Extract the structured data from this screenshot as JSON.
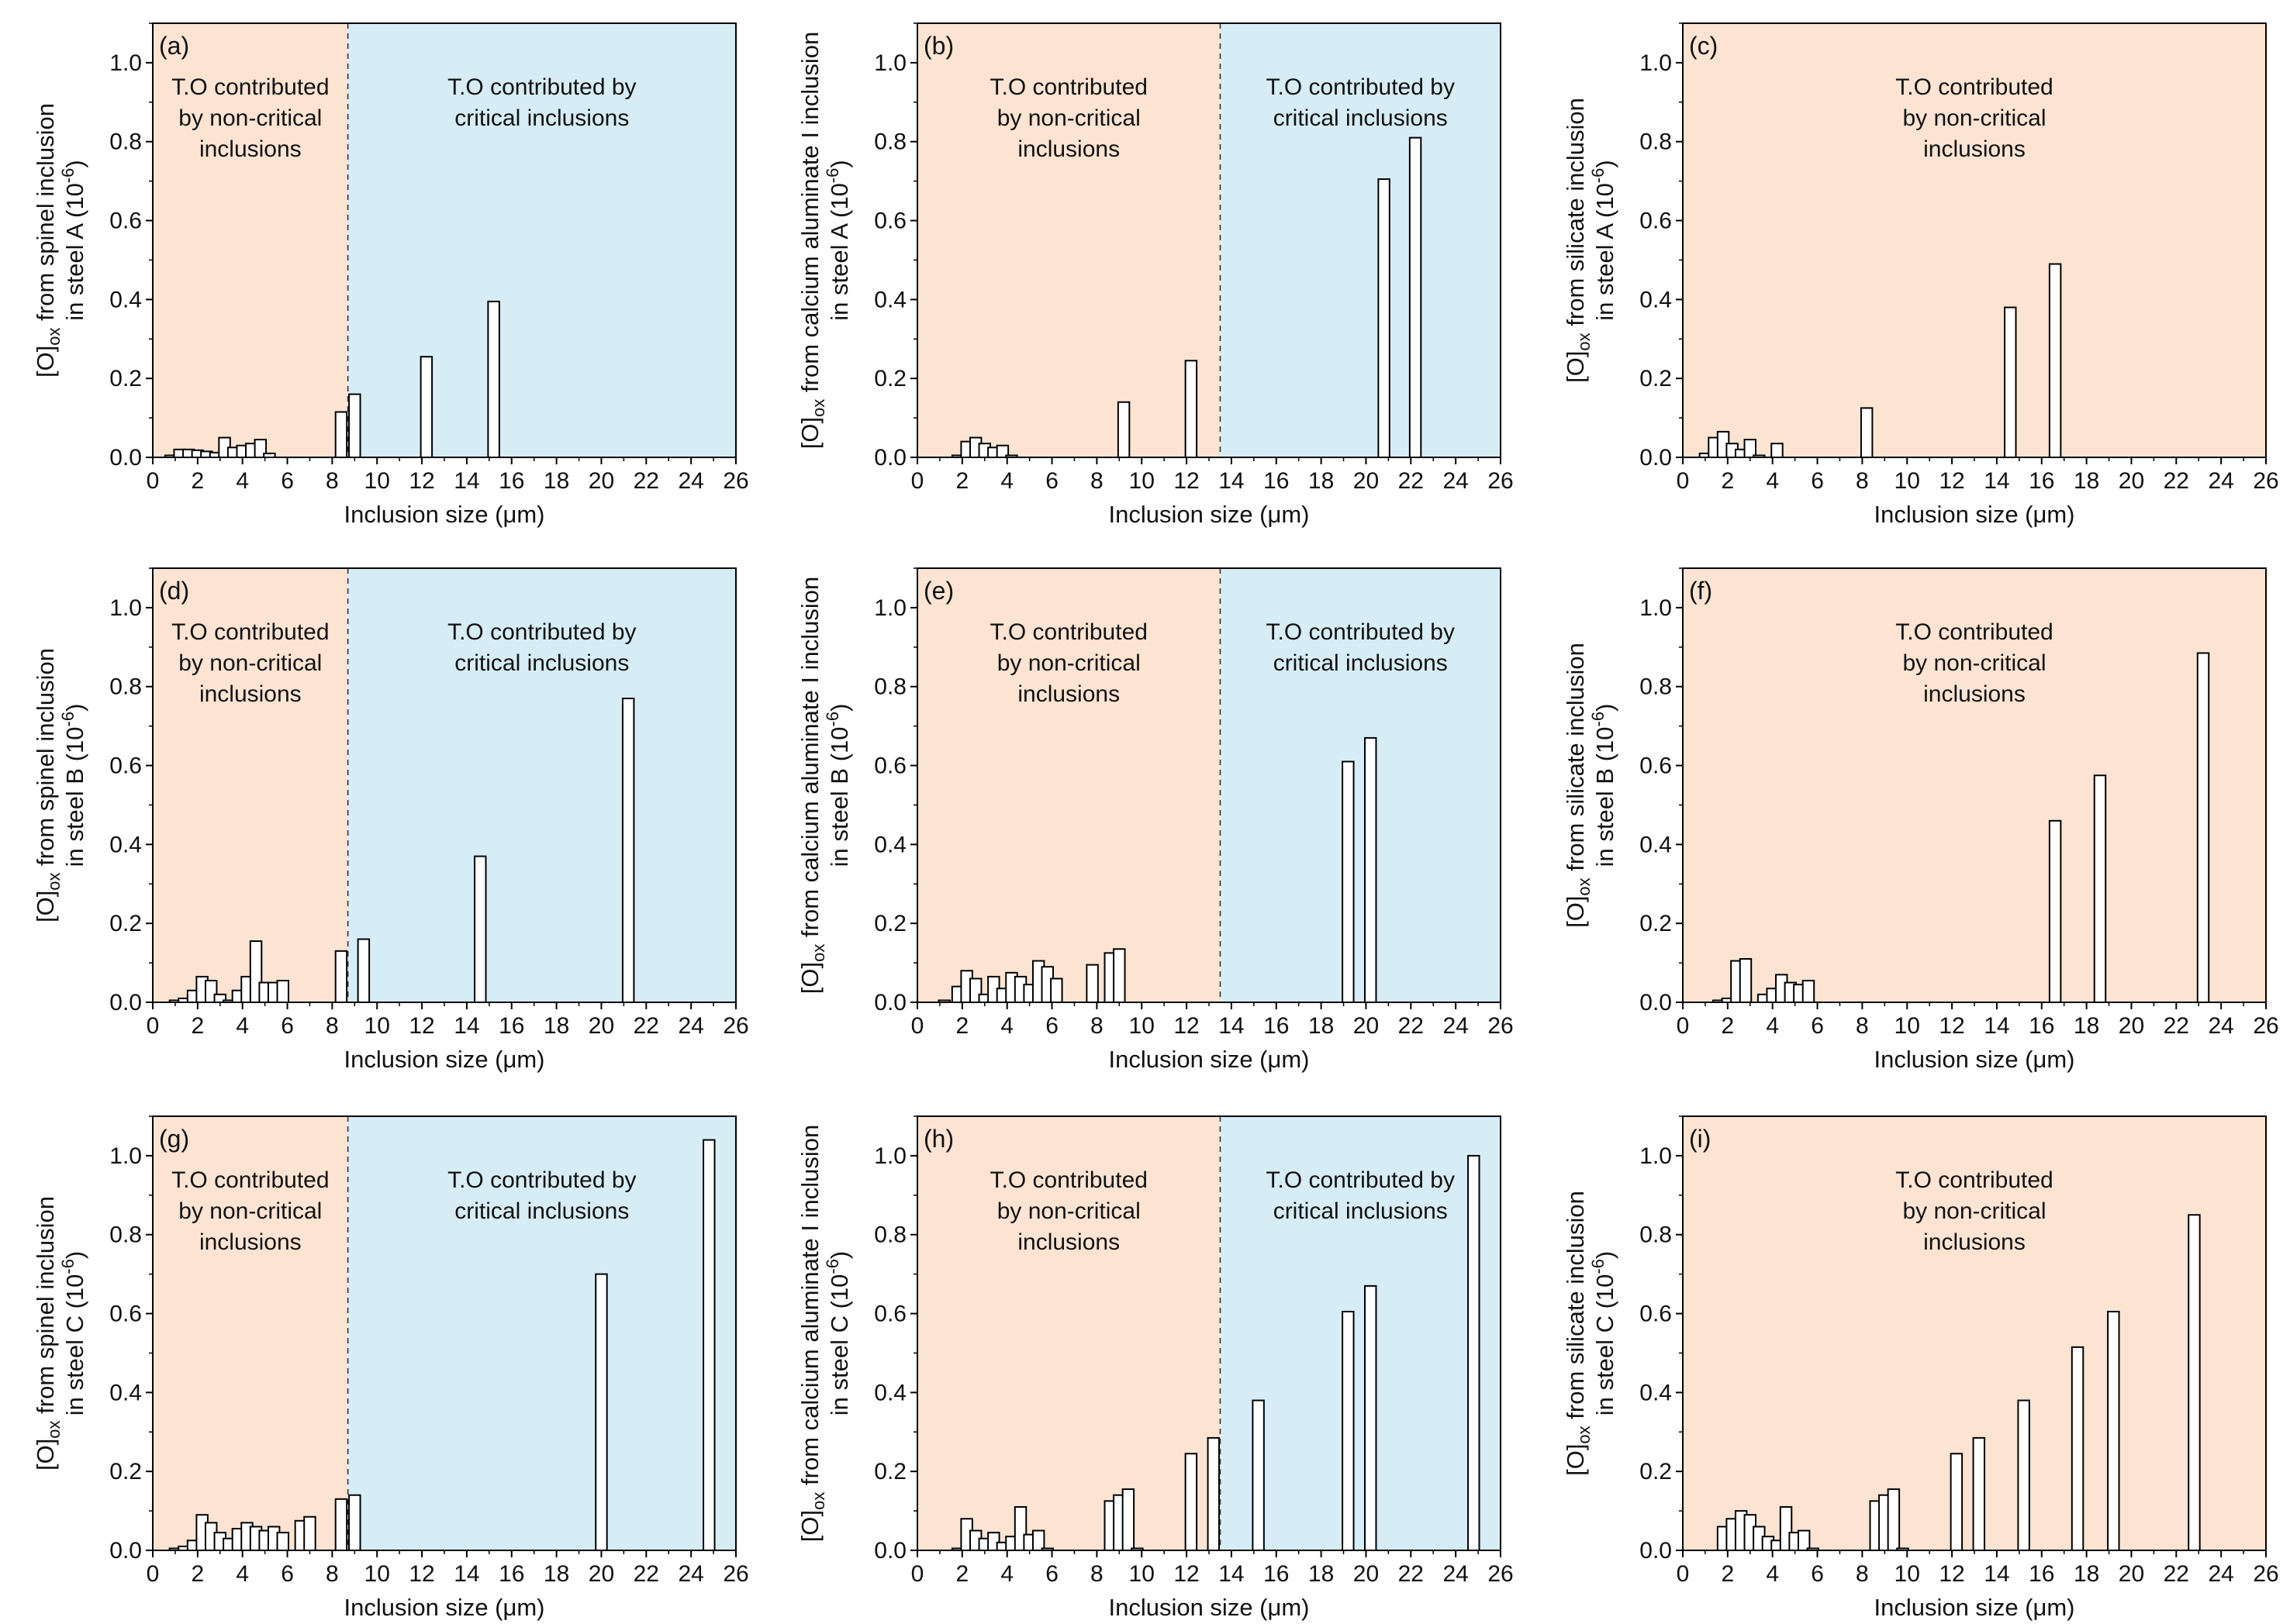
{
  "chart_data": [
    {
      "type": "bar",
      "id": "a",
      "tag": "(a)",
      "ylabel_prefix": "[O]",
      "ylabel_sub": "ox",
      "ylabel_line1": " from spinel inclusion",
      "ylabel_line2": "in steel A (10",
      "ylabel_sup": "-6",
      "ylabel_close": ")",
      "xlabel": "Inclusion size (μm)",
      "xlim": [
        0,
        26
      ],
      "ylim": [
        0,
        1.1
      ],
      "xticks": [
        0,
        2,
        4,
        6,
        8,
        10,
        12,
        14,
        16,
        18,
        20,
        22,
        24,
        26
      ],
      "yticks": [
        0.0,
        0.2,
        0.4,
        0.6,
        0.8,
        1.0
      ],
      "x_tick_labels": [
        "0",
        "2",
        "4",
        "6",
        "8",
        "10",
        "12",
        "14",
        "16",
        "18",
        "20",
        "22",
        "24",
        "26"
      ],
      "y_tick_labels": [
        "0.0",
        "0.2",
        "0.4",
        "0.6",
        "0.8",
        "1.0"
      ],
      "split": 8.7,
      "regions": [
        {
          "color": "#fde4d2",
          "lines": [
            "T.O contributed",
            "by non-critical",
            "inclusions"
          ]
        },
        {
          "color": "#d6edf6",
          "lines": [
            "T.O contributed by",
            "critical inclusions"
          ]
        }
      ],
      "bar_width": 0.5,
      "x": [
        0.8,
        1.2,
        1.6,
        2.0,
        2.4,
        2.8,
        3.2,
        3.6,
        4.0,
        4.4,
        4.8,
        5.2,
        8.4,
        9.0,
        12.2,
        15.2
      ],
      "values": [
        0.005,
        0.02,
        0.02,
        0.018,
        0.015,
        0.012,
        0.05,
        0.025,
        0.03,
        0.035,
        0.045,
        0.01,
        0.115,
        0.16,
        0.255,
        0.395
      ]
    },
    {
      "type": "bar",
      "id": "b",
      "tag": "(b)",
      "ylabel_prefix": "[O]",
      "ylabel_sub": "ox",
      "ylabel_line1": " from calcium aluminate I inclusion",
      "ylabel_line2": "in steel A (10",
      "ylabel_sup": "-6",
      "ylabel_close": ")",
      "xlabel": "Inclusion size (μm)",
      "xlim": [
        0,
        26
      ],
      "ylim": [
        0,
        1.1
      ],
      "xticks": [
        0,
        2,
        4,
        6,
        8,
        10,
        12,
        14,
        16,
        18,
        20,
        22,
        24,
        26
      ],
      "yticks": [
        0.0,
        0.2,
        0.4,
        0.6,
        0.8,
        1.0
      ],
      "x_tick_labels": [
        "0",
        "2",
        "4",
        "6",
        "8",
        "10",
        "12",
        "14",
        "16",
        "18",
        "20",
        "22",
        "24",
        "26"
      ],
      "y_tick_labels": [
        "0.0",
        "0.2",
        "0.4",
        "0.6",
        "0.8",
        "1.0"
      ],
      "split": 13.5,
      "regions": [
        {
          "color": "#fde4d2",
          "lines": [
            "T.O contributed",
            "by non-critical",
            "inclusions"
          ]
        },
        {
          "color": "#d6edf6",
          "lines": [
            "T.O contributed by",
            "critical inclusions"
          ]
        }
      ],
      "bar_width": 0.5,
      "x": [
        1.8,
        2.2,
        2.6,
        3.0,
        3.4,
        3.8,
        4.2,
        9.2,
        12.2,
        20.8,
        22.2
      ],
      "values": [
        0.005,
        0.04,
        0.05,
        0.035,
        0.025,
        0.03,
        0.005,
        0.14,
        0.245,
        0.705,
        0.81
      ]
    },
    {
      "type": "bar",
      "id": "c",
      "tag": "(c)",
      "ylabel_prefix": "[O]",
      "ylabel_sub": "ox",
      "ylabel_line1": " from silicate inclusion",
      "ylabel_line2": "in steel A (10",
      "ylabel_sup": "-6",
      "ylabel_close": ")",
      "xlabel": "Inclusion size (μm)",
      "xlim": [
        0,
        26
      ],
      "ylim": [
        0,
        1.1
      ],
      "xticks": [
        0,
        2,
        4,
        6,
        8,
        10,
        12,
        14,
        16,
        18,
        20,
        22,
        24,
        26
      ],
      "yticks": [
        0.0,
        0.2,
        0.4,
        0.6,
        0.8,
        1.0
      ],
      "x_tick_labels": [
        "0",
        "2",
        "4",
        "6",
        "8",
        "10",
        "12",
        "14",
        "16",
        "18",
        "20",
        "22",
        "24",
        "26"
      ],
      "y_tick_labels": [
        "0.0",
        "0.2",
        "0.4",
        "0.6",
        "0.8",
        "1.0"
      ],
      "split": null,
      "regions": [
        {
          "color": "#fde4d2",
          "lines": [
            "T.O contributed",
            "by non-critical",
            "inclusions"
          ]
        }
      ],
      "bar_width": 0.5,
      "x": [
        1.0,
        1.4,
        1.8,
        2.2,
        2.6,
        3.0,
        3.4,
        4.2,
        8.2,
        14.6,
        16.6
      ],
      "values": [
        0.01,
        0.05,
        0.065,
        0.035,
        0.02,
        0.045,
        0.005,
        0.035,
        0.125,
        0.38,
        0.49
      ]
    },
    {
      "type": "bar",
      "id": "d",
      "tag": "(d)",
      "ylabel_prefix": "[O]",
      "ylabel_sub": "ox",
      "ylabel_line1": " from spinel inclusion",
      "ylabel_line2": "in steel B (10",
      "ylabel_sup": "-6",
      "ylabel_close": ")",
      "xlabel": "Inclusion size (μm)",
      "xlim": [
        0,
        26
      ],
      "ylim": [
        0,
        1.1
      ],
      "xticks": [
        0,
        2,
        4,
        6,
        8,
        10,
        12,
        14,
        16,
        18,
        20,
        22,
        24,
        26
      ],
      "yticks": [
        0.0,
        0.2,
        0.4,
        0.6,
        0.8,
        1.0
      ],
      "x_tick_labels": [
        "0",
        "2",
        "4",
        "6",
        "8",
        "10",
        "12",
        "14",
        "16",
        "18",
        "20",
        "22",
        "24",
        "26"
      ],
      "y_tick_labels": [
        "0.0",
        "0.2",
        "0.4",
        "0.6",
        "0.8",
        "1.0"
      ],
      "split": 8.7,
      "regions": [
        {
          "color": "#fde4d2",
          "lines": [
            "T.O contributed",
            "by non-critical",
            "inclusions"
          ]
        },
        {
          "color": "#d6edf6",
          "lines": [
            "T.O contributed by",
            "critical inclusions"
          ]
        }
      ],
      "bar_width": 0.5,
      "x": [
        1.0,
        1.4,
        1.8,
        2.2,
        2.6,
        3.0,
        3.4,
        3.8,
        4.2,
        4.6,
        5.0,
        5.4,
        5.8,
        8.4,
        9.4,
        14.6,
        21.2
      ],
      "values": [
        0.005,
        0.01,
        0.03,
        0.065,
        0.055,
        0.02,
        0.005,
        0.03,
        0.065,
        0.155,
        0.05,
        0.05,
        0.055,
        0.13,
        0.16,
        0.37,
        0.77
      ]
    },
    {
      "type": "bar",
      "id": "e",
      "tag": "(e)",
      "ylabel_prefix": "[O]",
      "ylabel_sub": "ox",
      "ylabel_line1": " from calcium aluminate I inclusion",
      "ylabel_line2": "in steel B (10",
      "ylabel_sup": "-6",
      "ylabel_close": ")",
      "xlabel": "Inclusion size (μm)",
      "xlim": [
        0,
        26
      ],
      "ylim": [
        0,
        1.1
      ],
      "xticks": [
        0,
        2,
        4,
        6,
        8,
        10,
        12,
        14,
        16,
        18,
        20,
        22,
        24,
        26
      ],
      "yticks": [
        0.0,
        0.2,
        0.4,
        0.6,
        0.8,
        1.0
      ],
      "x_tick_labels": [
        "0",
        "2",
        "4",
        "6",
        "8",
        "10",
        "12",
        "14",
        "16",
        "18",
        "20",
        "22",
        "24",
        "26"
      ],
      "y_tick_labels": [
        "0.0",
        "0.2",
        "0.4",
        "0.6",
        "0.8",
        "1.0"
      ],
      "split": 13.5,
      "regions": [
        {
          "color": "#fde4d2",
          "lines": [
            "T.O contributed",
            "by non-critical",
            "inclusions"
          ]
        },
        {
          "color": "#d6edf6",
          "lines": [
            "T.O contributed by",
            "critical inclusions"
          ]
        }
      ],
      "bar_width": 0.5,
      "x": [
        1.2,
        1.8,
        2.2,
        2.6,
        3.0,
        3.4,
        3.8,
        4.2,
        4.6,
        5.0,
        5.4,
        5.8,
        6.2,
        7.8,
        8.6,
        9.0,
        19.2,
        20.2
      ],
      "values": [
        0.005,
        0.04,
        0.08,
        0.06,
        0.02,
        0.065,
        0.035,
        0.075,
        0.065,
        0.045,
        0.105,
        0.09,
        0.06,
        0.095,
        0.125,
        0.135,
        0.61,
        0.67
      ]
    },
    {
      "type": "bar",
      "id": "f",
      "tag": "(f)",
      "ylabel_prefix": "[O]",
      "ylabel_sub": "ox",
      "ylabel_line1": " from silicate inclusion",
      "ylabel_line2": "in steel B (10",
      "ylabel_sup": "-6",
      "ylabel_close": ")",
      "xlabel": "Inclusion size (μm)",
      "xlim": [
        0,
        26
      ],
      "ylim": [
        0,
        1.1
      ],
      "xticks": [
        0,
        2,
        4,
        6,
        8,
        10,
        12,
        14,
        16,
        18,
        20,
        22,
        24,
        26
      ],
      "yticks": [
        0.0,
        0.2,
        0.4,
        0.6,
        0.8,
        1.0
      ],
      "x_tick_labels": [
        "0",
        "2",
        "4",
        "6",
        "8",
        "10",
        "12",
        "14",
        "16",
        "18",
        "20",
        "22",
        "24",
        "26"
      ],
      "y_tick_labels": [
        "0.0",
        "0.2",
        "0.4",
        "0.6",
        "0.8",
        "1.0"
      ],
      "split": null,
      "regions": [
        {
          "color": "#fde4d2",
          "lines": [
            "T.O contributed",
            "by non-critical",
            "inclusions"
          ]
        }
      ],
      "bar_width": 0.5,
      "x": [
        1.6,
        2.0,
        2.4,
        2.8,
        3.6,
        4.0,
        4.4,
        4.8,
        5.2,
        5.6,
        16.6,
        18.6,
        23.2
      ],
      "values": [
        0.005,
        0.01,
        0.105,
        0.11,
        0.02,
        0.035,
        0.07,
        0.05,
        0.045,
        0.055,
        0.46,
        0.575,
        0.885
      ]
    },
    {
      "type": "bar",
      "id": "g",
      "tag": "(g)",
      "ylabel_prefix": "[O]",
      "ylabel_sub": "ox",
      "ylabel_line1": " from spinel inclusion",
      "ylabel_line2": "in steel C (10",
      "ylabel_sup": "-6",
      "ylabel_close": ")",
      "xlabel": "Inclusion size (μm)",
      "xlim": [
        0,
        26
      ],
      "ylim": [
        0,
        1.1
      ],
      "xticks": [
        0,
        2,
        4,
        6,
        8,
        10,
        12,
        14,
        16,
        18,
        20,
        22,
        24,
        26
      ],
      "yticks": [
        0.0,
        0.2,
        0.4,
        0.6,
        0.8,
        1.0
      ],
      "x_tick_labels": [
        "0",
        "2",
        "4",
        "6",
        "8",
        "10",
        "12",
        "14",
        "16",
        "18",
        "20",
        "22",
        "24",
        "26"
      ],
      "y_tick_labels": [
        "0.0",
        "0.2",
        "0.4",
        "0.6",
        "0.8",
        "1.0"
      ],
      "split": 8.7,
      "regions": [
        {
          "color": "#fde4d2",
          "lines": [
            "T.O contributed",
            "by non-critical",
            "inclusions"
          ]
        },
        {
          "color": "#d6edf6",
          "lines": [
            "T.O contributed by",
            "critical inclusions"
          ]
        }
      ],
      "bar_width": 0.5,
      "x": [
        1.0,
        1.4,
        1.8,
        2.2,
        2.6,
        3.0,
        3.4,
        3.8,
        4.2,
        4.6,
        5.0,
        5.4,
        5.8,
        6.6,
        7.0,
        8.4,
        9.0,
        20.0,
        24.8
      ],
      "values": [
        0.005,
        0.01,
        0.025,
        0.09,
        0.07,
        0.045,
        0.03,
        0.055,
        0.07,
        0.06,
        0.05,
        0.06,
        0.045,
        0.075,
        0.085,
        0.13,
        0.14,
        0.7,
        1.04
      ]
    },
    {
      "type": "bar",
      "id": "h",
      "tag": "(h)",
      "ylabel_prefix": "[O]",
      "ylabel_sub": "ox",
      "ylabel_line1": " from calcium aluminate I inclusion",
      "ylabel_line2": "in steel C (10",
      "ylabel_sup": "-6",
      "ylabel_close": ")",
      "xlabel": "Inclusion size (μm)",
      "xlim": [
        0,
        26
      ],
      "ylim": [
        0,
        1.1
      ],
      "xticks": [
        0,
        2,
        4,
        6,
        8,
        10,
        12,
        14,
        16,
        18,
        20,
        22,
        24,
        26
      ],
      "yticks": [
        0.0,
        0.2,
        0.4,
        0.6,
        0.8,
        1.0
      ],
      "x_tick_labels": [
        "0",
        "2",
        "4",
        "6",
        "8",
        "10",
        "12",
        "14",
        "16",
        "18",
        "20",
        "22",
        "24",
        "26"
      ],
      "y_tick_labels": [
        "0.0",
        "0.2",
        "0.4",
        "0.6",
        "0.8",
        "1.0"
      ],
      "split": 13.5,
      "regions": [
        {
          "color": "#fde4d2",
          "lines": [
            "T.O contributed",
            "by non-critical",
            "inclusions"
          ]
        },
        {
          "color": "#d6edf6",
          "lines": [
            "T.O contributed by",
            "critical inclusions"
          ]
        }
      ],
      "bar_width": 0.5,
      "x": [
        1.8,
        2.2,
        2.6,
        3.0,
        3.4,
        3.8,
        4.2,
        4.6,
        5.0,
        5.4,
        5.8,
        8.6,
        9.0,
        9.4,
        9.8,
        12.2,
        13.2,
        15.2,
        19.2,
        20.2,
        24.8
      ],
      "values": [
        0.005,
        0.08,
        0.05,
        0.03,
        0.045,
        0.02,
        0.035,
        0.11,
        0.04,
        0.05,
        0.005,
        0.125,
        0.14,
        0.155,
        0.005,
        0.245,
        0.285,
        0.38,
        0.605,
        0.67,
        1.0
      ]
    },
    {
      "type": "bar",
      "id": "i",
      "tag": "(i)",
      "ylabel_prefix": "[O]",
      "ylabel_sub": "ox",
      "ylabel_line1": " from silicate inclusion",
      "ylabel_line2": "in steel C (10",
      "ylabel_sup": "-6",
      "ylabel_close": ")",
      "xlabel": "Inclusion size (μm)",
      "xlim": [
        0,
        26
      ],
      "ylim": [
        0,
        1.1
      ],
      "xticks": [
        0,
        2,
        4,
        6,
        8,
        10,
        12,
        14,
        16,
        18,
        20,
        22,
        24,
        26
      ],
      "yticks": [
        0.0,
        0.2,
        0.4,
        0.6,
        0.8,
        1.0
      ],
      "x_tick_labels": [
        "0",
        "2",
        "4",
        "6",
        "8",
        "10",
        "12",
        "14",
        "16",
        "18",
        "20",
        "22",
        "24",
        "26"
      ],
      "y_tick_labels": [
        "0.0",
        "0.2",
        "0.4",
        "0.6",
        "0.8",
        "1.0"
      ],
      "split": null,
      "regions": [
        {
          "color": "#fde4d2",
          "lines": [
            "T.O contributed",
            "by non-critical",
            "inclusions"
          ]
        }
      ],
      "bar_width": 0.5,
      "x": [
        1.8,
        2.2,
        2.6,
        3.0,
        3.4,
        3.8,
        4.2,
        4.6,
        5.0,
        5.4,
        5.8,
        8.6,
        9.0,
        9.4,
        9.8,
        12.2,
        13.2,
        15.2,
        17.6,
        19.2,
        22.8
      ],
      "values": [
        0.06,
        0.08,
        0.1,
        0.09,
        0.06,
        0.035,
        0.025,
        0.11,
        0.045,
        0.05,
        0.005,
        0.125,
        0.14,
        0.155,
        0.005,
        0.245,
        0.285,
        0.38,
        0.515,
        0.605,
        0.85
      ]
    }
  ]
}
